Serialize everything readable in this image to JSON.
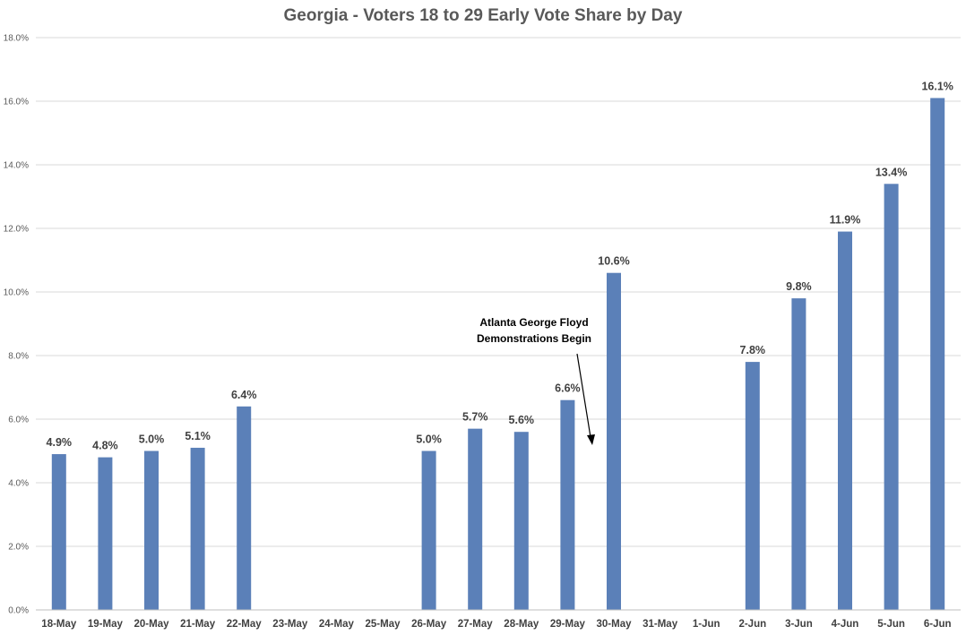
{
  "chart_data": {
    "type": "bar",
    "title": "Georgia - Voters 18 to 29 Early Vote Share by Day",
    "xlabel": "",
    "ylabel": "",
    "ylim": [
      0,
      18
    ],
    "yticks": [
      0,
      2,
      4,
      6,
      8,
      10,
      12,
      14,
      16,
      18
    ],
    "ytick_labels": [
      "0.0%",
      "2.0%",
      "4.0%",
      "6.0%",
      "8.0%",
      "10.0%",
      "12.0%",
      "14.0%",
      "16.0%",
      "18.0%"
    ],
    "categories": [
      "18-May",
      "19-May",
      "20-May",
      "21-May",
      "22-May",
      "23-May",
      "24-May",
      "25-May",
      "26-May",
      "27-May",
      "28-May",
      "29-May",
      "30-May",
      "31-May",
      "1-Jun",
      "2-Jun",
      "3-Jun",
      "4-Jun",
      "5-Jun",
      "6-Jun"
    ],
    "values": [
      4.9,
      4.8,
      5.0,
      5.1,
      6.4,
      null,
      null,
      null,
      5.0,
      5.7,
      5.6,
      6.6,
      10.6,
      null,
      null,
      7.8,
      9.8,
      11.9,
      13.4,
      16.1
    ],
    "data_labels": [
      "4.9%",
      "4.8%",
      "5.0%",
      "5.1%",
      "6.4%",
      "",
      "",
      "",
      "5.0%",
      "5.7%",
      "5.6%",
      "6.6%",
      "10.6%",
      "",
      "",
      "7.8%",
      "9.8%",
      "11.9%",
      "13.4%",
      "16.1%"
    ],
    "bar_color": "#5b80b8",
    "grid": true,
    "legend": "none",
    "annotation": {
      "lines": [
        "Atlanta George Floyd",
        "Demonstrations Begin"
      ],
      "points_to": "30-May"
    }
  }
}
